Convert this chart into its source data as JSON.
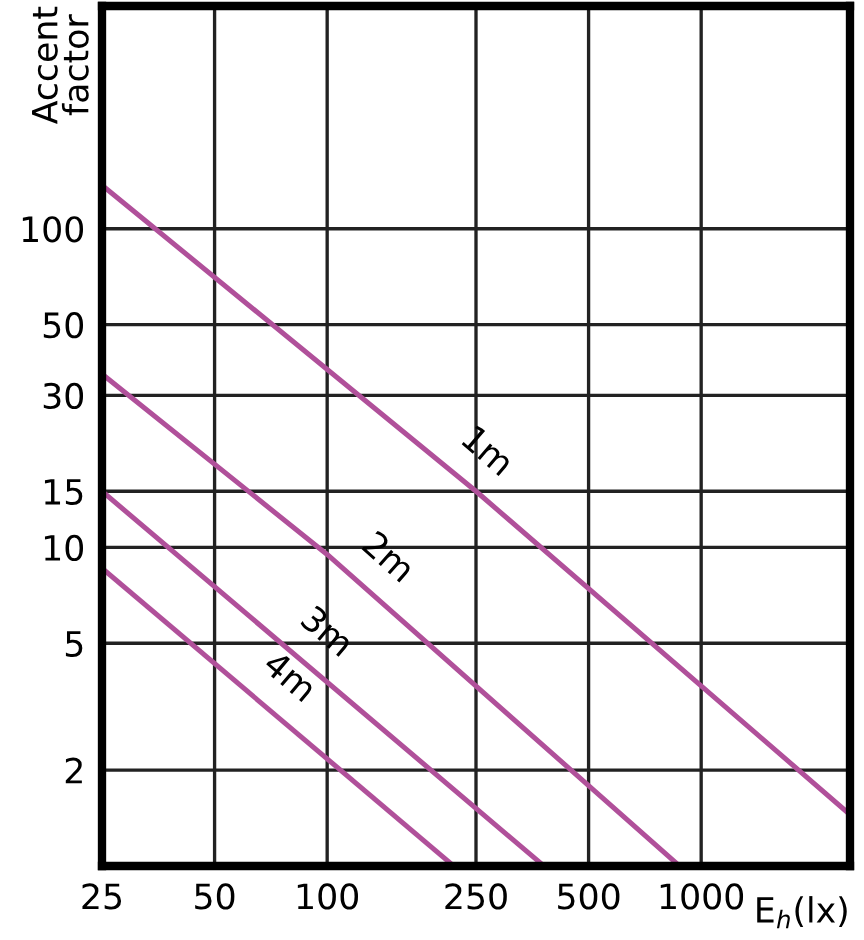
{
  "chart_data": {
    "type": "line",
    "xlabel": "E$_{h}$(lx)",
    "ylabel": "Accent factor",
    "log": "xy",
    "grid": true,
    "legend": false,
    "marker": "none",
    "line_style": "solid",
    "xlim": [
      25,
      2500
    ],
    "xticks": [
      25,
      50,
      100,
      250,
      500,
      1000
    ],
    "ylim": [
      1,
      500
    ],
    "yticks": [
      2,
      5,
      10,
      15,
      30,
      50,
      100
    ],
    "series": [
      {
        "name": "1m",
        "color": "#b0509a",
        "x": [
          25,
          250,
          2500
        ],
        "values": [
          137,
          15,
          1.45
        ]
      },
      {
        "name": "2m",
        "color": "#b0509a",
        "x": [
          25,
          100,
          875
        ],
        "values": [
          35,
          9.5,
          1
        ]
      },
      {
        "name": "3m",
        "color": "#b0509a",
        "x": [
          25,
          380
        ],
        "values": [
          15,
          1
        ]
      },
      {
        "name": "4m",
        "color": "#b0509a",
        "x": [
          25,
          218
        ],
        "values": [
          8.6,
          1
        ]
      }
    ]
  }
}
